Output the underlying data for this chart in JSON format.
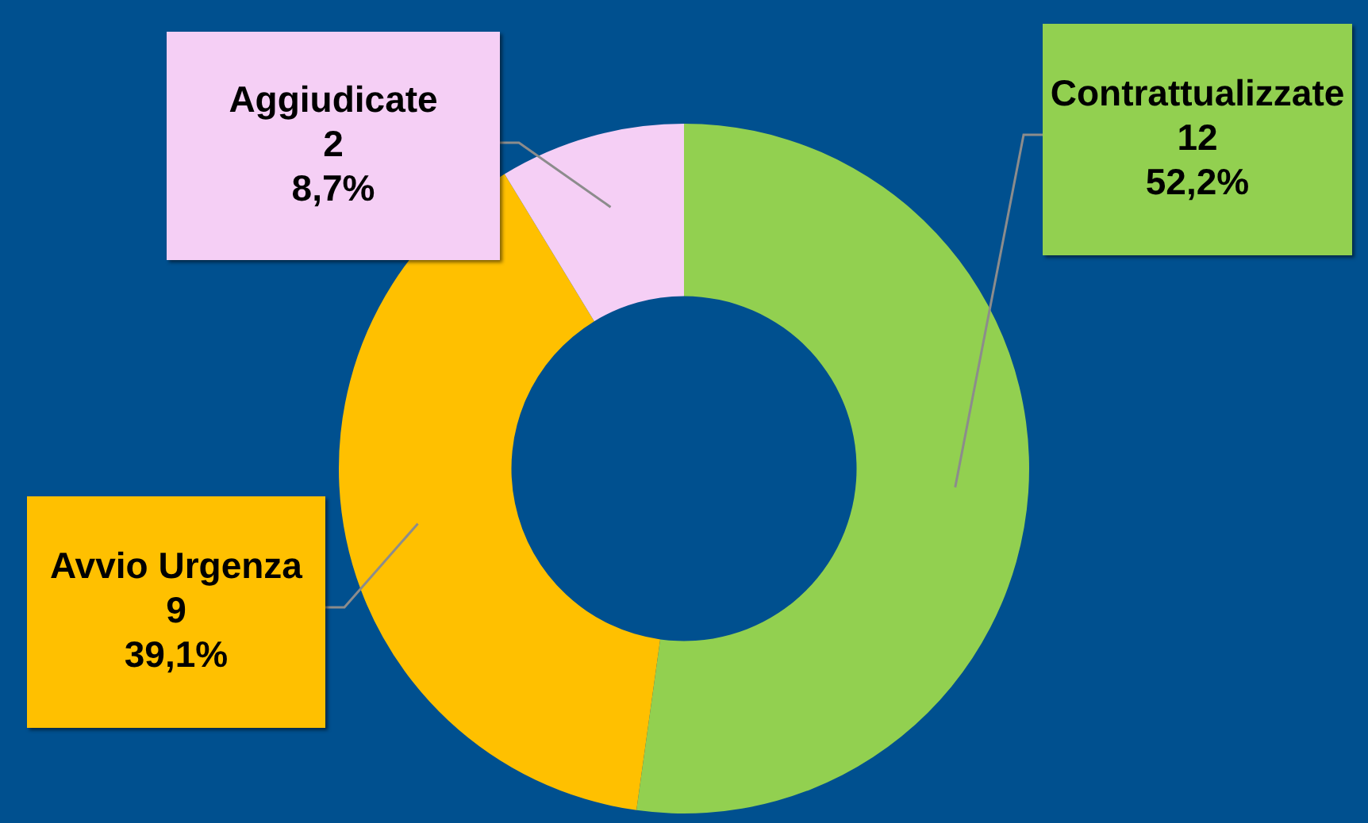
{
  "chart_data": {
    "type": "donut",
    "categories": [
      "Contrattualizzate",
      "Avvio Urgenza",
      "Aggiudicate"
    ],
    "values": [
      52.2,
      39.1,
      8.7
    ],
    "colors": [
      "#92d050",
      "#ffc000",
      "#f5cff5"
    ],
    "value_labels": [
      "12\n52,2%",
      "9\n39,1%",
      "2\n8,7%"
    ],
    "legend": false
  }
}
